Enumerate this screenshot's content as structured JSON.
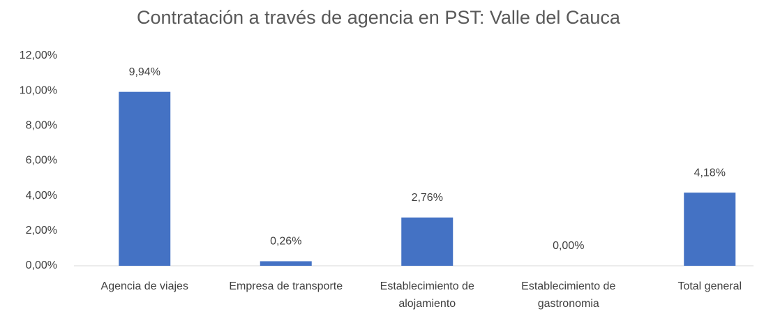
{
  "chart_data": {
    "type": "bar",
    "title": "Contratación a través de agencia en PST: Valle del Cauca",
    "categories": [
      "Agencia de viajes",
      "Empresa de transporte",
      "Establecimiento de alojamiento",
      "Establecimiento de gastronomia",
      "Total general"
    ],
    "values": [
      9.94,
      0.26,
      2.76,
      0,
      4.18
    ],
    "value_labels": [
      "9,94%",
      "0,26%",
      "2,76%",
      "0,00%",
      "4,18%"
    ],
    "color": "#4472c4",
    "ylim": [
      0,
      12
    ],
    "yticks": [
      {
        "value": 0,
        "label": "0,00%"
      },
      {
        "value": 2,
        "label": "2,00%"
      },
      {
        "value": 4,
        "label": "4,00%"
      },
      {
        "value": 6,
        "label": "6,00%"
      },
      {
        "value": 8,
        "label": "8,00%"
      },
      {
        "value": 10,
        "label": "10,00%"
      },
      {
        "value": 12,
        "label": "12,00%"
      }
    ],
    "grid": false
  }
}
